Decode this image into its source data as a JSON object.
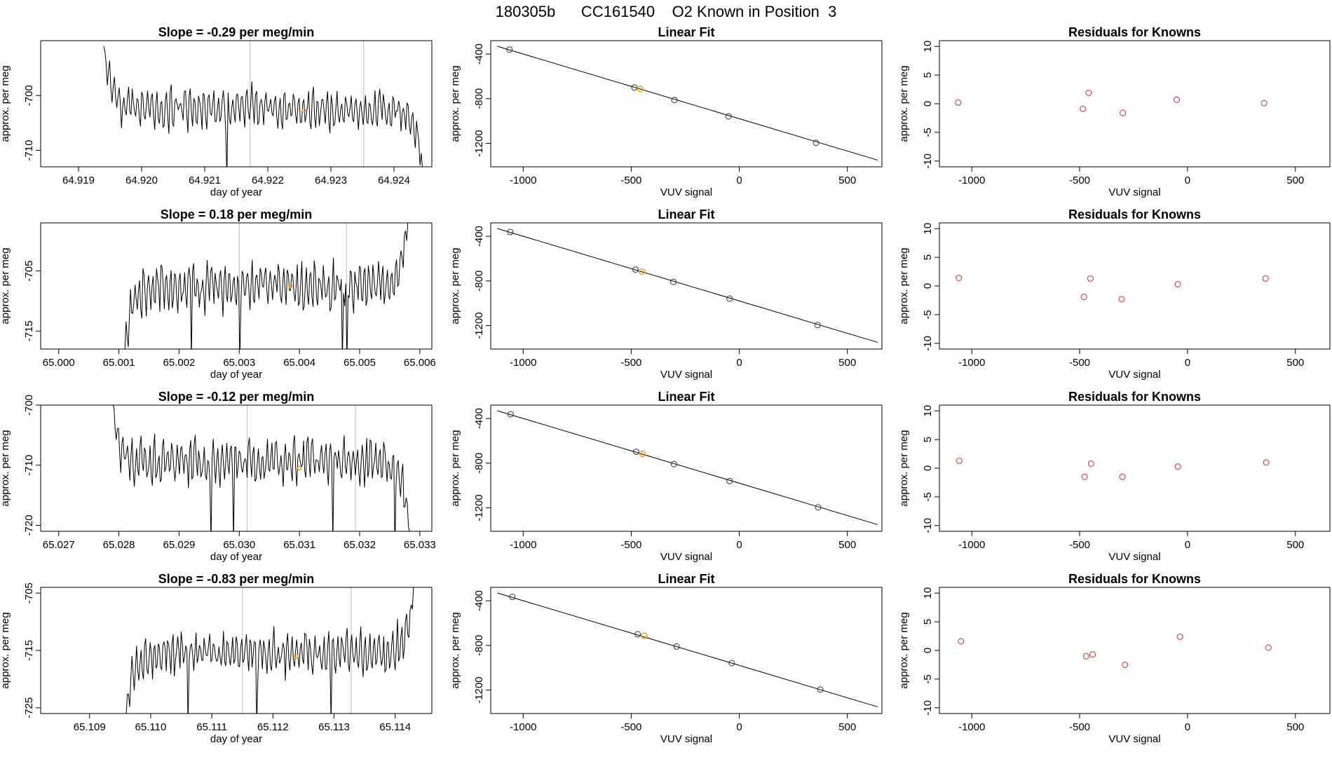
{
  "page_title": "180305b      CC161540    O2 Known in Position  3",
  "colors": {
    "trace": "#000000",
    "vline": "#bbbbbb",
    "point_black": "#333333",
    "point_orange": "#f39c12",
    "point_red": "#d33c3c",
    "fit_line": "#000000"
  },
  "chart_data": [
    {
      "type": "line",
      "title": "Slope =  -0.29  per meg/min",
      "xlabel": "day of year",
      "ylabel": "approx. per meg",
      "xlim": [
        64.9184,
        64.9246
      ],
      "ylim": [
        -713,
        -690
      ],
      "xticks": [
        64.919,
        64.92,
        64.921,
        64.922,
        64.923,
        64.924
      ],
      "xticklabels": [
        "64.919",
        "64.920",
        "64.921",
        "64.922",
        "64.923",
        "64.924"
      ],
      "yticks": [
        -700,
        -710
      ],
      "yticklabels": [
        "-700",
        "-710"
      ],
      "x_start": 64.9194,
      "x_end": 64.92445,
      "vlines": [
        64.92172,
        64.92352
      ],
      "y_start": -691,
      "y_end": -713,
      "y_mean": -702.5,
      "y_amp": 3.2,
      "ramp": 0.9,
      "seed": 11,
      "period": 7.5e-05,
      "marker": {
        "x": 64.92257,
        "y": -702.7
      }
    },
    {
      "type": "scatter",
      "title": "Linear Fit",
      "xlabel": "VUV signal",
      "ylabel": "approx. per meg",
      "xlim": [
        -1150,
        660
      ],
      "ylim": [
        -1410,
        -280
      ],
      "xticks": [
        -1000,
        -500,
        0,
        500
      ],
      "xticklabels": [
        "-1000",
        "-500",
        "0",
        "500"
      ],
      "yticks": [
        -400,
        -800,
        -1200
      ],
      "yticklabels": [
        "-400",
        "-800",
        "-1200"
      ],
      "fit_line": [
        [
          -1120,
          -330
        ],
        [
          640,
          -1350
        ]
      ],
      "points": [
        [
          -1063,
          -360
        ],
        [
          -485,
          -700
        ],
        [
          -300,
          -812
        ],
        [
          -50,
          -958
        ],
        [
          355,
          -1195
        ]
      ],
      "highlight": [
        -458,
        -712
      ]
    },
    {
      "type": "scatter",
      "title": "Residuals for Knowns",
      "xlabel": "VUV signal",
      "ylabel": "approx. per meg",
      "xlim": [
        -1150,
        660
      ],
      "ylim": [
        -11,
        11
      ],
      "xticks": [
        -1000,
        -500,
        0,
        500
      ],
      "xticklabels": [
        "-1000",
        "-500",
        "0",
        "500"
      ],
      "yticks": [
        10,
        5,
        0,
        -5,
        -10
      ],
      "yticklabels": [
        "10",
        "5",
        "0",
        "-5",
        "-10"
      ],
      "points": [
        [
          -1063,
          0.2
        ],
        [
          -485,
          -0.9
        ],
        [
          -458,
          1.9
        ],
        [
          -300,
          -1.6
        ],
        [
          -50,
          0.7
        ],
        [
          355,
          0.1
        ]
      ]
    },
    {
      "type": "line",
      "title": "Slope =  0.18  per meg/min",
      "xlabel": "day of year",
      "ylabel": "approx. per meg",
      "xlim": [
        64.9997,
        65.0062
      ],
      "ylim": [
        -718,
        -697
      ],
      "xticks": [
        65.0,
        65.001,
        65.002,
        65.003,
        65.004,
        65.005,
        65.006
      ],
      "xticklabels": [
        "65.000",
        "65.001",
        "65.002",
        "65.003",
        "65.004",
        "65.005",
        "65.006"
      ],
      "yticks": [
        -705,
        -715
      ],
      "yticklabels": [
        "-705",
        "-715"
      ],
      "x_start": 65.0011,
      "x_end": 65.0058,
      "vlines": [
        65.003,
        65.00478
      ],
      "y_start": -718,
      "y_end": -697,
      "y_mean": -707.5,
      "y_amp": 3.5,
      "ramp": 0.9,
      "seed": 23,
      "period": 7.5e-05,
      "marker": {
        "x": 65.00385,
        "y": -707.5
      }
    },
    {
      "type": "scatter",
      "title": "Linear Fit",
      "xlabel": "VUV signal",
      "ylabel": "approx. per meg",
      "xlim": [
        -1150,
        660
      ],
      "ylim": [
        -1410,
        -280
      ],
      "xticks": [
        -1000,
        -500,
        0,
        500
      ],
      "xticklabels": [
        "-1000",
        "-500",
        "0",
        "500"
      ],
      "yticks": [
        -400,
        -800,
        -1200
      ],
      "yticklabels": [
        "-400",
        "-800",
        "-1200"
      ],
      "fit_line": [
        [
          -1120,
          -330
        ],
        [
          640,
          -1350
        ]
      ],
      "points": [
        [
          -1060,
          -362
        ],
        [
          -480,
          -698
        ],
        [
          -305,
          -808
        ],
        [
          -45,
          -958
        ],
        [
          362,
          -1195
        ]
      ],
      "highlight": [
        -450,
        -716
      ]
    },
    {
      "type": "scatter",
      "title": "Residuals for Knowns",
      "xlabel": "VUV signal",
      "ylabel": "approx. per meg",
      "xlim": [
        -1150,
        660
      ],
      "ylim": [
        -11,
        11
      ],
      "xticks": [
        -1000,
        -500,
        0,
        500
      ],
      "xticklabels": [
        "-1000",
        "-500",
        "0",
        "500"
      ],
      "yticks": [
        10,
        5,
        0,
        -5,
        -10
      ],
      "yticklabels": [
        "10",
        "5",
        "0",
        "-5",
        "-10"
      ],
      "points": [
        [
          -1060,
          1.4
        ],
        [
          -480,
          -1.9
        ],
        [
          -450,
          1.3
        ],
        [
          -305,
          -2.3
        ],
        [
          -45,
          0.3
        ],
        [
          362,
          1.3
        ]
      ]
    },
    {
      "type": "line",
      "title": "Slope =  -0.12  per meg/min",
      "xlabel": "day of year",
      "ylabel": "approx. per meg",
      "xlim": [
        65.0267,
        65.0332
      ],
      "ylim": [
        -721,
        -700
      ],
      "xticks": [
        65.027,
        65.028,
        65.029,
        65.03,
        65.031,
        65.032,
        65.033
      ],
      "xticklabels": [
        "65.027",
        "65.028",
        "65.029",
        "65.030",
        "65.031",
        "65.032",
        "65.033"
      ],
      "yticks": [
        -700,
        -710,
        -720
      ],
      "yticklabels": [
        "-700",
        "-710",
        "-720"
      ],
      "x_start": 65.0279,
      "x_end": 65.03283,
      "vlines": [
        65.03013,
        65.03193
      ],
      "y_start": -700,
      "y_end": -721,
      "y_mean": -709.5,
      "y_amp": 3.3,
      "ramp": 0.9,
      "seed": 37,
      "period": 7.5e-05,
      "marker": {
        "x": 65.031,
        "y": -710.5
      }
    },
    {
      "type": "scatter",
      "title": "Linear Fit",
      "xlabel": "VUV signal",
      "ylabel": "approx. per meg",
      "xlim": [
        -1150,
        660
      ],
      "ylim": [
        -1410,
        -280
      ],
      "xticks": [
        -1000,
        -500,
        0,
        500
      ],
      "xticklabels": [
        "-1000",
        "-500",
        "0",
        "500"
      ],
      "yticks": [
        -400,
        -800,
        -1200
      ],
      "yticklabels": [
        "-400",
        "-800",
        "-1200"
      ],
      "fit_line": [
        [
          -1120,
          -330
        ],
        [
          640,
          -1350
        ]
      ],
      "points": [
        [
          -1058,
          -362
        ],
        [
          -477,
          -698
        ],
        [
          -302,
          -808
        ],
        [
          -45,
          -960
        ],
        [
          365,
          -1195
        ]
      ],
      "highlight": [
        -447,
        -716
      ]
    },
    {
      "type": "scatter",
      "title": "Residuals for Knowns",
      "xlabel": "VUV signal",
      "ylabel": "approx. per meg",
      "xlim": [
        -1150,
        660
      ],
      "ylim": [
        -11,
        11
      ],
      "xticks": [
        -1000,
        -500,
        0,
        500
      ],
      "xticklabels": [
        "-1000",
        "-500",
        "0",
        "500"
      ],
      "yticks": [
        10,
        5,
        0,
        -5,
        -10
      ],
      "yticklabels": [
        "10",
        "5",
        "0",
        "-5",
        "-10"
      ],
      "points": [
        [
          -1058,
          1.3
        ],
        [
          -477,
          -1.5
        ],
        [
          -447,
          0.8
        ],
        [
          -302,
          -1.5
        ],
        [
          -45,
          0.3
        ],
        [
          365,
          1.0
        ]
      ]
    },
    {
      "type": "line",
      "title": "Slope =  -0.83  per meg/min",
      "xlabel": "day of year",
      "ylabel": "approx. per meg",
      "xlim": [
        65.1082,
        65.1146
      ],
      "ylim": [
        -726,
        -704
      ],
      "xticks": [
        65.109,
        65.11,
        65.111,
        65.112,
        65.113,
        65.114
      ],
      "xticklabels": [
        "65.109",
        "65.110",
        "65.111",
        "65.112",
        "65.113",
        "65.114"
      ],
      "yticks": [
        -705,
        -715,
        -725
      ],
      "yticklabels": [
        "-705",
        "-715",
        "-725"
      ],
      "x_start": 65.1096,
      "x_end": 65.1143,
      "vlines": [
        65.1115,
        65.11328
      ],
      "y_start": -726,
      "y_end": -704,
      "y_mean": -715.5,
      "y_amp": 3.3,
      "ramp": 0.9,
      "seed": 53,
      "period": 7.5e-05,
      "marker": {
        "x": 65.11238,
        "y": -716.0
      }
    },
    {
      "type": "scatter",
      "title": "Linear Fit",
      "xlabel": "VUV signal",
      "ylabel": "approx. per meg",
      "xlim": [
        -1150,
        660
      ],
      "ylim": [
        -1410,
        -280
      ],
      "xticks": [
        -1000,
        -500,
        0,
        500
      ],
      "xticklabels": [
        "-1000",
        "-500",
        "0",
        "500"
      ],
      "yticks": [
        -400,
        -800,
        -1200
      ],
      "yticklabels": [
        "-400",
        "-800",
        "-1200"
      ],
      "fit_line": [
        [
          -1120,
          -330
        ],
        [
          640,
          -1350
        ]
      ],
      "points": [
        [
          -1050,
          -366
        ],
        [
          -470,
          -700
        ],
        [
          -290,
          -810
        ],
        [
          -35,
          -958
        ],
        [
          375,
          -1195
        ]
      ],
      "highlight": [
        -440,
        -714
      ]
    },
    {
      "type": "scatter",
      "title": "Residuals for Knowns",
      "xlabel": "VUV signal",
      "ylabel": "approx. per meg",
      "xlim": [
        -1150,
        660
      ],
      "ylim": [
        -11,
        11
      ],
      "xticks": [
        -1000,
        -500,
        0,
        500
      ],
      "xticklabels": [
        "-1000",
        "-500",
        "0",
        "500"
      ],
      "yticks": [
        10,
        5,
        0,
        -5,
        -10
      ],
      "yticklabels": [
        "10",
        "5",
        "0",
        "-5",
        "-10"
      ],
      "points": [
        [
          -1050,
          1.6
        ],
        [
          -470,
          -1.0
        ],
        [
          -440,
          -0.7
        ],
        [
          -290,
          -2.5
        ],
        [
          -35,
          2.4
        ],
        [
          375,
          0.5
        ]
      ]
    }
  ]
}
